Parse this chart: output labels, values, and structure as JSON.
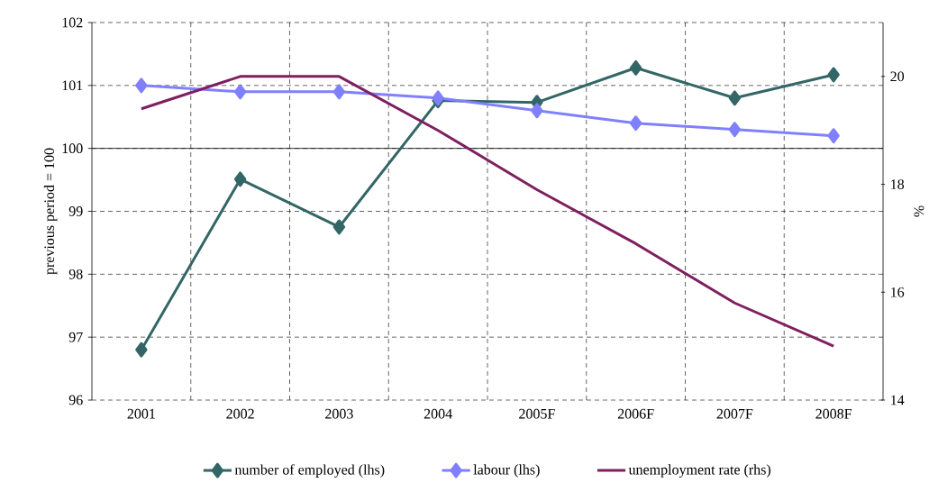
{
  "chart_data": {
    "type": "line",
    "categories": [
      "2001",
      "2002",
      "2003",
      "2004",
      "2005F",
      "2006F",
      "2007F",
      "2008F"
    ],
    "ylabel": "previous period = 100",
    "y2label": "%",
    "series": [
      {
        "name": "number of employed (lhs)",
        "color": "#336666",
        "marker": "diamond",
        "values": [
          96.8,
          99.51,
          98.75,
          100.76,
          100.73,
          101.28,
          100.8,
          101.17
        ]
      },
      {
        "name": "labour (lhs)",
        "color": "#8080ff",
        "marker": "diamond",
        "values": [
          101.0,
          100.9,
          100.9,
          100.8,
          100.6,
          100.4,
          100.3,
          100.2
        ]
      },
      {
        "name": "unemployment rate (rhs)",
        "color": "#7f1f5f",
        "marker": "none",
        "axis": "y2",
        "values": [
          19.4,
          20.0,
          20.0,
          19.0,
          17.9,
          16.9,
          15.8,
          15.0
        ]
      }
    ],
    "ylim": [
      96,
      102
    ],
    "yticks": [
      96,
      97,
      98,
      99,
      100,
      101,
      102
    ],
    "y2lim": [
      14,
      21
    ],
    "y2ticks": [
      14,
      16,
      18,
      20
    ],
    "ref_lines": [
      {
        "axis": "y",
        "value": 100,
        "color": "#000000"
      }
    ],
    "grid": true,
    "legend": "bottom",
    "line_style": "solid"
  }
}
